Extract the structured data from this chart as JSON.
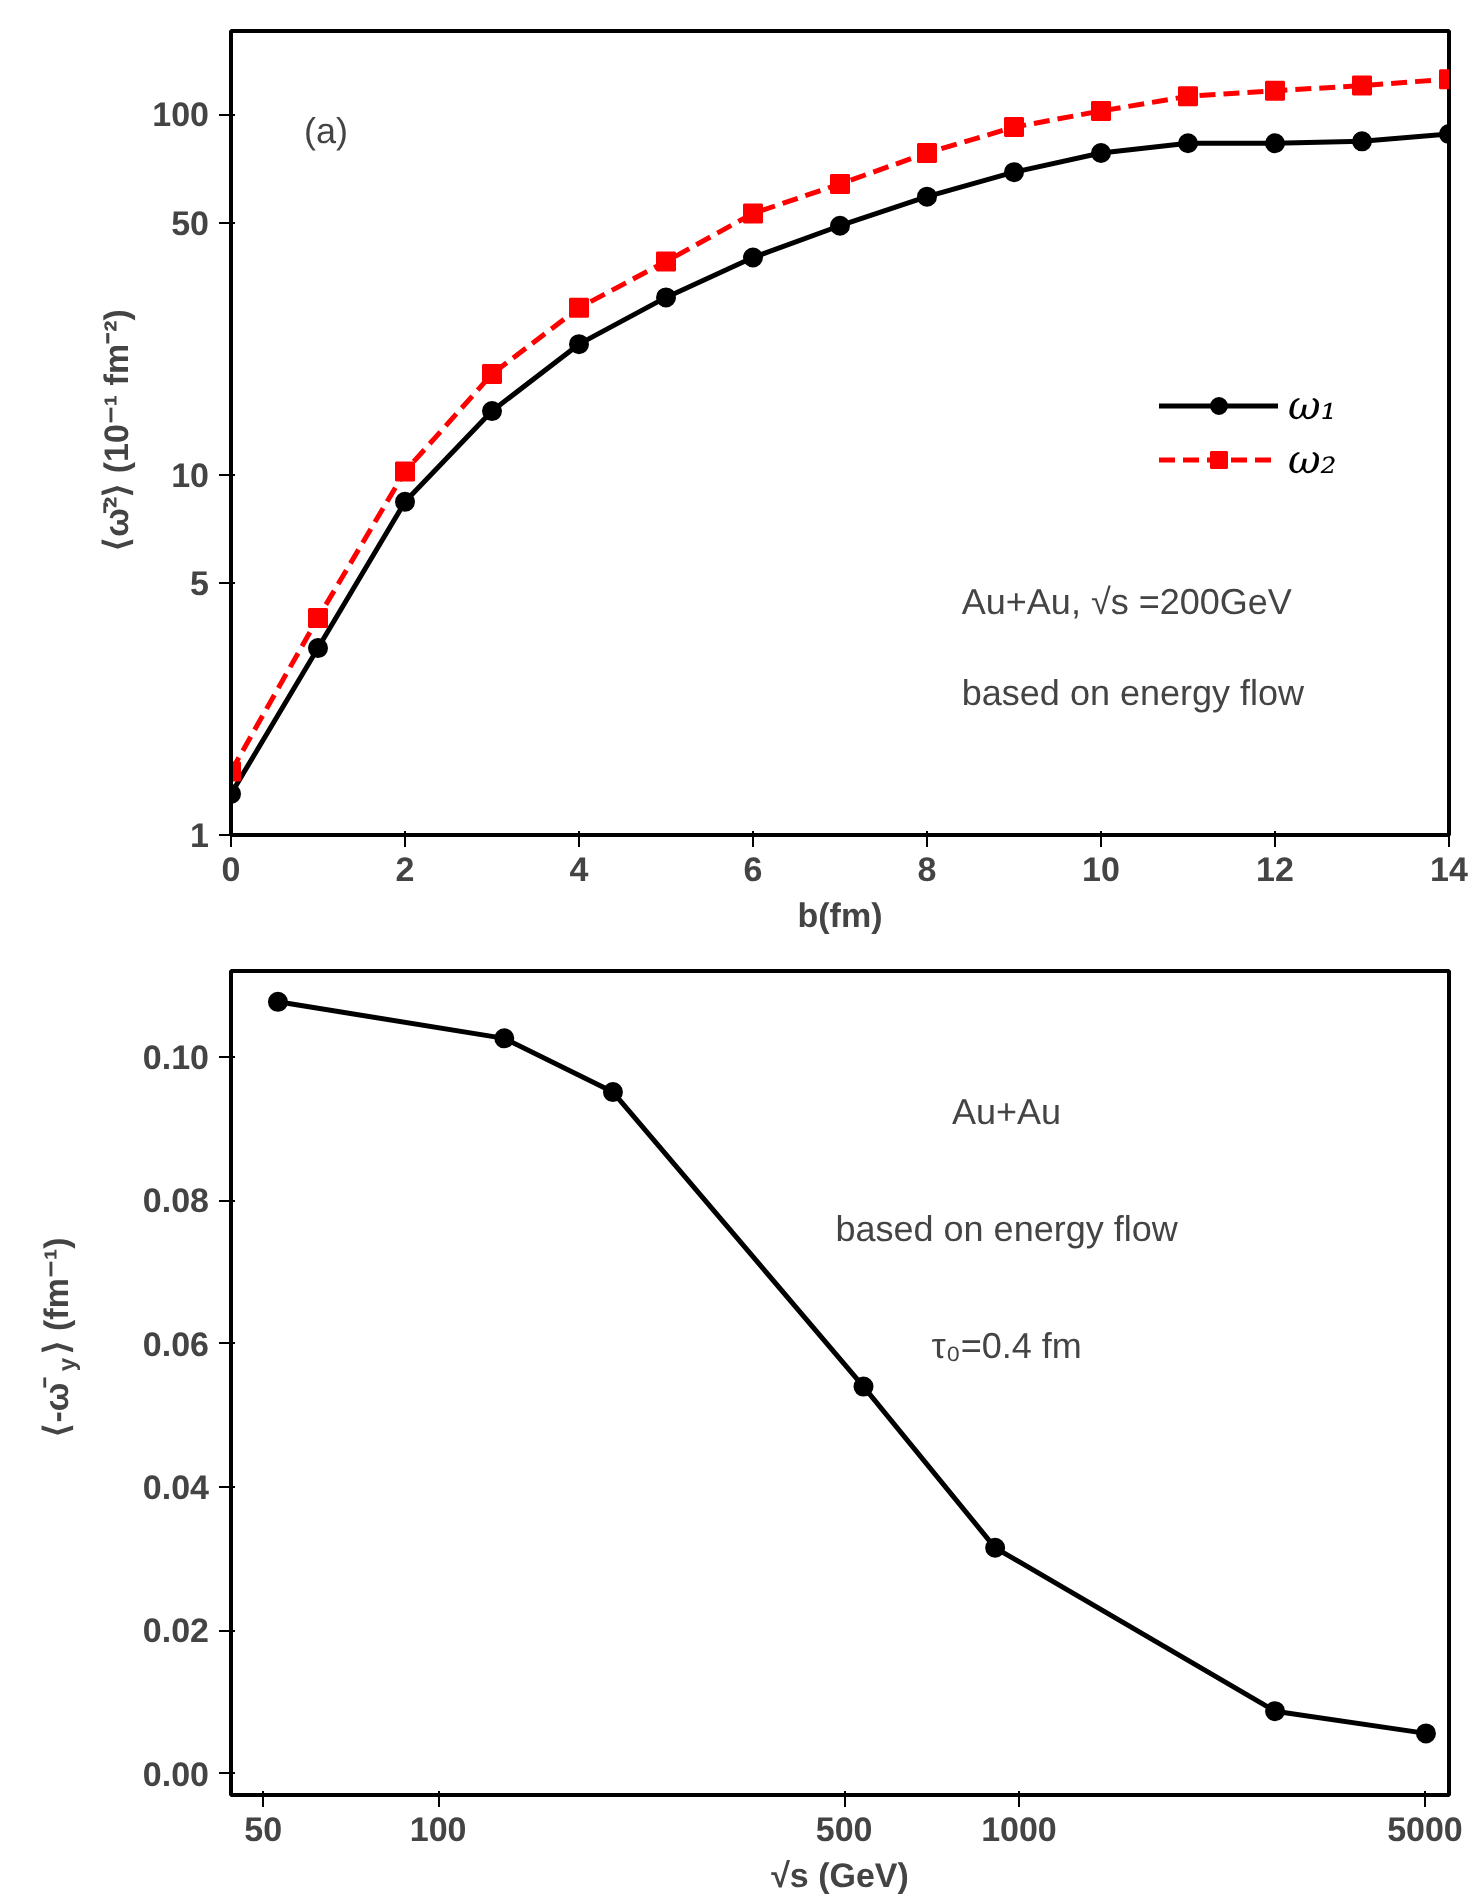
{
  "chart_data": [
    {
      "type": "line",
      "xlabel": "b(fm)",
      "ylabel": "⟨ω̄²⟩ (10⁻¹ fm⁻²)",
      "annotations": [
        "(a)",
        "Au+Au, √s =200GeV",
        "based on energy flow"
      ],
      "x": [
        0,
        1,
        2,
        3,
        4,
        5,
        6,
        7,
        8,
        9,
        10,
        11,
        12,
        13,
        14
      ],
      "series": [
        {
          "name": "ω₁",
          "color": "#000000",
          "marker": "circle",
          "line_style": "solid",
          "values": [
            1.3,
            3.3,
            8.4,
            15,
            23,
            31,
            40,
            49,
            59,
            69,
            78,
            83,
            83,
            84,
            88
          ]
        },
        {
          "name": "ω₂",
          "color": "#ff0000",
          "marker": "square",
          "line_style": "dashed",
          "values": [
            1.5,
            4.0,
            10.2,
            19,
            29,
            39,
            53,
            64,
            78,
            92,
            102,
            112,
            116,
            120,
            125
          ]
        }
      ],
      "xlim": [
        0,
        14
      ],
      "ylim": [
        1,
        170
      ],
      "xticks": [
        0,
        2,
        4,
        6,
        8,
        10,
        12,
        14
      ],
      "yticks": [
        1,
        5,
        10,
        50,
        100
      ],
      "log": "y",
      "legend": "right"
    },
    {
      "type": "line",
      "xlabel": "√s (GeV)",
      "ylabel": "⟨-ω̄$_{y}$⟩ (fm⁻¹)",
      "annotations": [
        "Au+Au",
        "based on energy flow",
        "τ₀=0.4 fm"
      ],
      "x": [
        53,
        130,
        200,
        540,
        910,
        2760,
        5020
      ],
      "series": [
        {
          "color": "#000000",
          "marker": "circle",
          "line_style": "solid",
          "values": [
            0.1077,
            0.1026,
            0.0951,
            0.054,
            0.0315,
            0.0087,
            0.0056
          ]
        }
      ],
      "xlim": [
        44,
        5500
      ],
      "ylim": [
        -0.003,
        0.112
      ],
      "xticks": [
        50,
        100,
        500,
        1000,
        5000
      ],
      "yticks": [
        {
          "value": 0,
          "label": "0.00"
        },
        0.02,
        0.04,
        0.06,
        0.08,
        {
          "value": 0.1,
          "label": "0.10"
        }
      ],
      "log": "x"
    }
  ]
}
